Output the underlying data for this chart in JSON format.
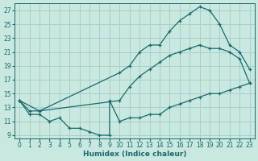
{
  "xlabel": "Humidex (Indice chaleur)",
  "bg_color": "#c8e8e0",
  "grid_color": "#a8d0cc",
  "line_color": "#1a6b6b",
  "xlim": [
    -0.5,
    23.5
  ],
  "ylim": [
    8.5,
    28
  ],
  "xticks": [
    0,
    1,
    2,
    3,
    4,
    5,
    6,
    7,
    8,
    9,
    10,
    11,
    12,
    13,
    14,
    15,
    16,
    17,
    18,
    19,
    20,
    21,
    22,
    23
  ],
  "yticks": [
    9,
    11,
    13,
    15,
    17,
    19,
    21,
    23,
    25,
    27
  ],
  "line_top_x": [
    0,
    1,
    2,
    10,
    11,
    12,
    13,
    14,
    15,
    16,
    17,
    18,
    19,
    20,
    21,
    22,
    23
  ],
  "line_top_y": [
    14,
    12.5,
    12.5,
    18,
    19,
    21,
    22,
    22,
    24,
    25.5,
    26.5,
    27.5,
    27,
    25,
    22,
    21,
    18.5
  ],
  "line_mid_x": [
    0,
    2,
    10,
    11,
    12,
    13,
    14,
    15,
    16,
    17,
    18,
    19,
    20,
    21,
    22,
    23
  ],
  "line_mid_y": [
    14,
    12.5,
    14,
    16,
    17.5,
    18.5,
    19.5,
    20.5,
    21,
    21.5,
    22,
    21.5,
    21.5,
    21,
    20,
    16.5
  ],
  "line_bot_x": [
    0,
    1,
    2,
    3,
    4,
    5,
    6,
    7,
    8,
    9,
    9,
    10,
    11,
    12,
    13,
    14,
    15,
    16,
    17,
    18,
    19,
    20,
    21,
    22,
    23
  ],
  "line_bot_y": [
    14,
    12,
    12,
    11,
    11.5,
    10,
    10,
    9.5,
    9,
    9,
    14,
    11,
    11.5,
    11.5,
    12,
    12,
    13,
    13.5,
    14,
    14.5,
    15,
    15,
    15.5,
    16,
    16.5
  ]
}
